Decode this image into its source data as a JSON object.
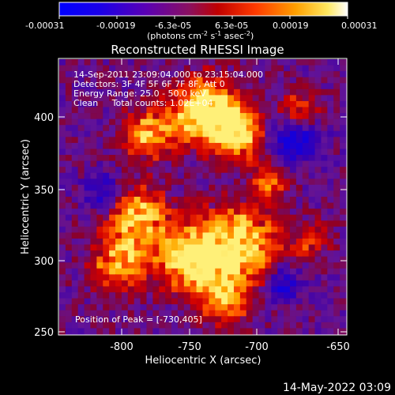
{
  "colorbar": {
    "ticks": [
      "-0.00031",
      "-0.00019",
      "-6.3e-05",
      "6.3e-05",
      "0.00019",
      "0.00031"
    ],
    "units_base": "(photons cm",
    "units_exp1": "-2",
    "units_mid": " s",
    "units_exp2": "-1",
    "units_tail": " asec",
    "units_exp3": "-2",
    "units_close": ")"
  },
  "plot": {
    "title": "Reconstructed RHESSI Image",
    "annotations": [
      "14-Sep-2011 23:09:04.000 to 23:15:04.000",
      "Detectors: 3F 4F 5F 6F 7F 8F, Att 0",
      "Energy Range: 25.0 - 50.0 keV",
      "Clean     Total counts: 1.02E+04"
    ],
    "peak_label": "Position of Peak = [-730,405]",
    "xlabel": "Heliocentric X (arcsec)",
    "ylabel": "Heliocentric Y (arcsec)",
    "xticks": [
      "-800",
      "-750",
      "-700",
      "-650"
    ],
    "yticks": [
      "400",
      "350",
      "300",
      "250"
    ]
  },
  "footer": {
    "timestamp": "14-May-2022 03:09"
  },
  "colors": {
    "background": "#000000",
    "colormap": [
      "#0000ff",
      "#4a00c8",
      "#7a1aa0",
      "#b00000",
      "#ff3000",
      "#ff9a00",
      "#ffe040",
      "#ffffff"
    ]
  }
}
